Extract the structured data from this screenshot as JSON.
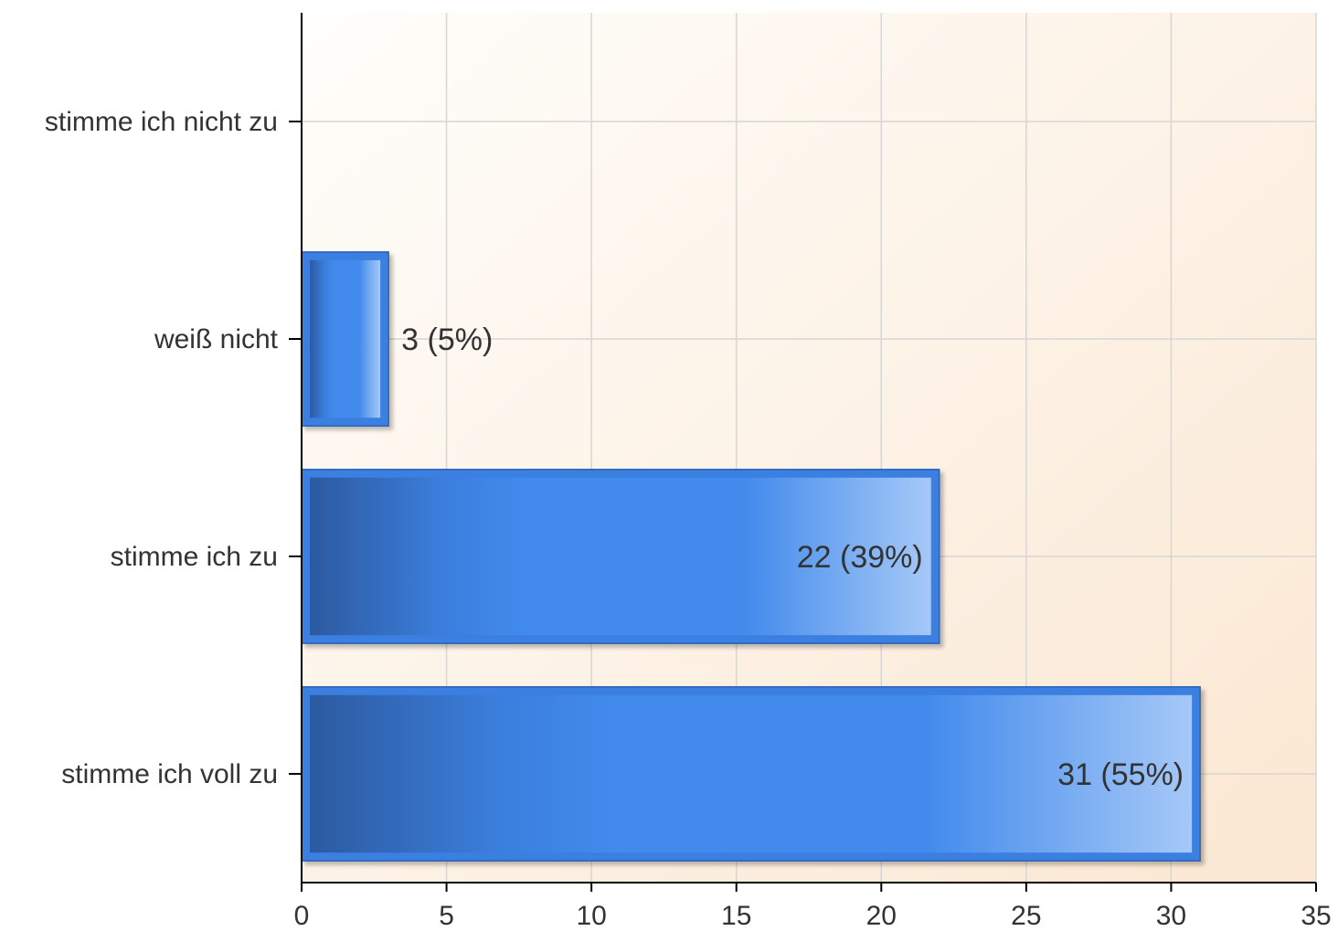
{
  "chart_data": {
    "type": "bar",
    "orientation": "horizontal",
    "title": "",
    "xlabel": "",
    "ylabel": "",
    "categories": [
      "stimme ich nicht zu",
      "weiß nicht",
      "stimme ich zu",
      "stimme ich voll zu"
    ],
    "values": [
      0,
      3,
      22,
      31
    ],
    "data_labels": [
      "",
      "3 (5%)",
      "22 (39%)",
      "31 (55%)"
    ],
    "xlim": [
      0,
      35
    ],
    "xticks": [
      0,
      5,
      10,
      15,
      20,
      25,
      30,
      35
    ],
    "grid": true,
    "legend": "none",
    "colors": {
      "bar_dark": "#2c5aa0",
      "bar_mid": "#428bec",
      "bar_light": "#a6c8f7",
      "bar_border": "#3a7fe0",
      "background_top": "#fffefb",
      "background_bottom": "#fbe7d2",
      "grid": "#d6d6d6",
      "axis": "#000000",
      "text": "#333333"
    }
  }
}
